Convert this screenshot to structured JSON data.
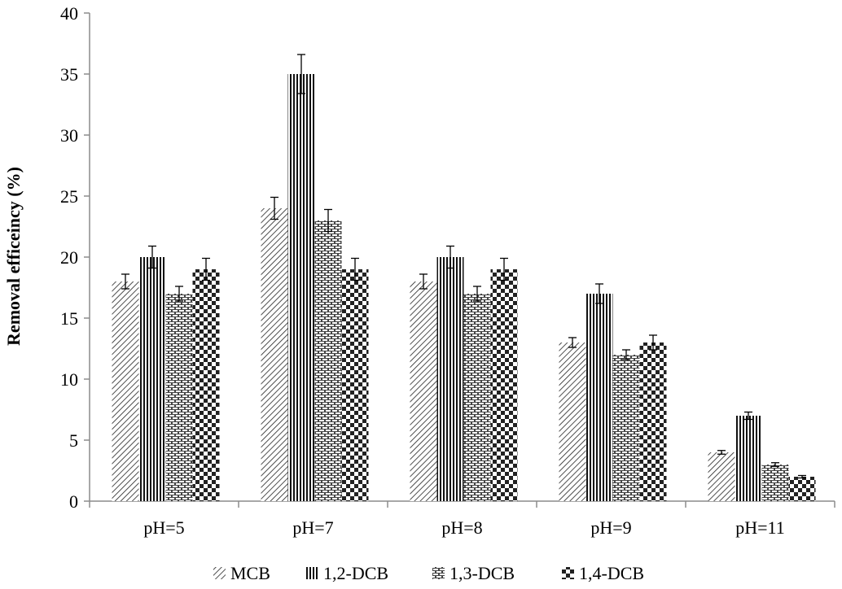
{
  "chart_data": {
    "type": "bar",
    "title": "",
    "xlabel": "",
    "ylabel": "Removal efficeincy (%)",
    "ylim": [
      0,
      40
    ],
    "yticks": [
      0,
      5,
      10,
      15,
      20,
      25,
      30,
      35,
      40
    ],
    "grid": false,
    "legend_position": "bottom",
    "categories": [
      "pH=5",
      "pH=7",
      "pH=8",
      "pH=9",
      "pH=11"
    ],
    "series": [
      {
        "name": "MCB",
        "pattern": "diagonal-hatch",
        "values": [
          18,
          24,
          18,
          13,
          4
        ],
        "errors": [
          0.6,
          0.9,
          0.6,
          0.4,
          0.15
        ]
      },
      {
        "name": "1,2-DCB",
        "pattern": "vertical-lines",
        "values": [
          20,
          35,
          20,
          17,
          7
        ],
        "errors": [
          0.9,
          1.6,
          0.9,
          0.8,
          0.3
        ]
      },
      {
        "name": "1,3-DCB",
        "pattern": "horizontal-dashes",
        "values": [
          17,
          23,
          17,
          12,
          3
        ],
        "errors": [
          0.6,
          0.9,
          0.6,
          0.4,
          0.15
        ]
      },
      {
        "name": "1,4-DCB",
        "pattern": "checkerboard",
        "values": [
          19,
          19,
          19,
          13,
          2
        ],
        "errors": [
          0.9,
          0.9,
          0.9,
          0.6,
          0.1
        ]
      }
    ],
    "colors": {
      "axis": "#8c8c8c",
      "ink": "#000000",
      "errorbar": "#000000"
    }
  }
}
